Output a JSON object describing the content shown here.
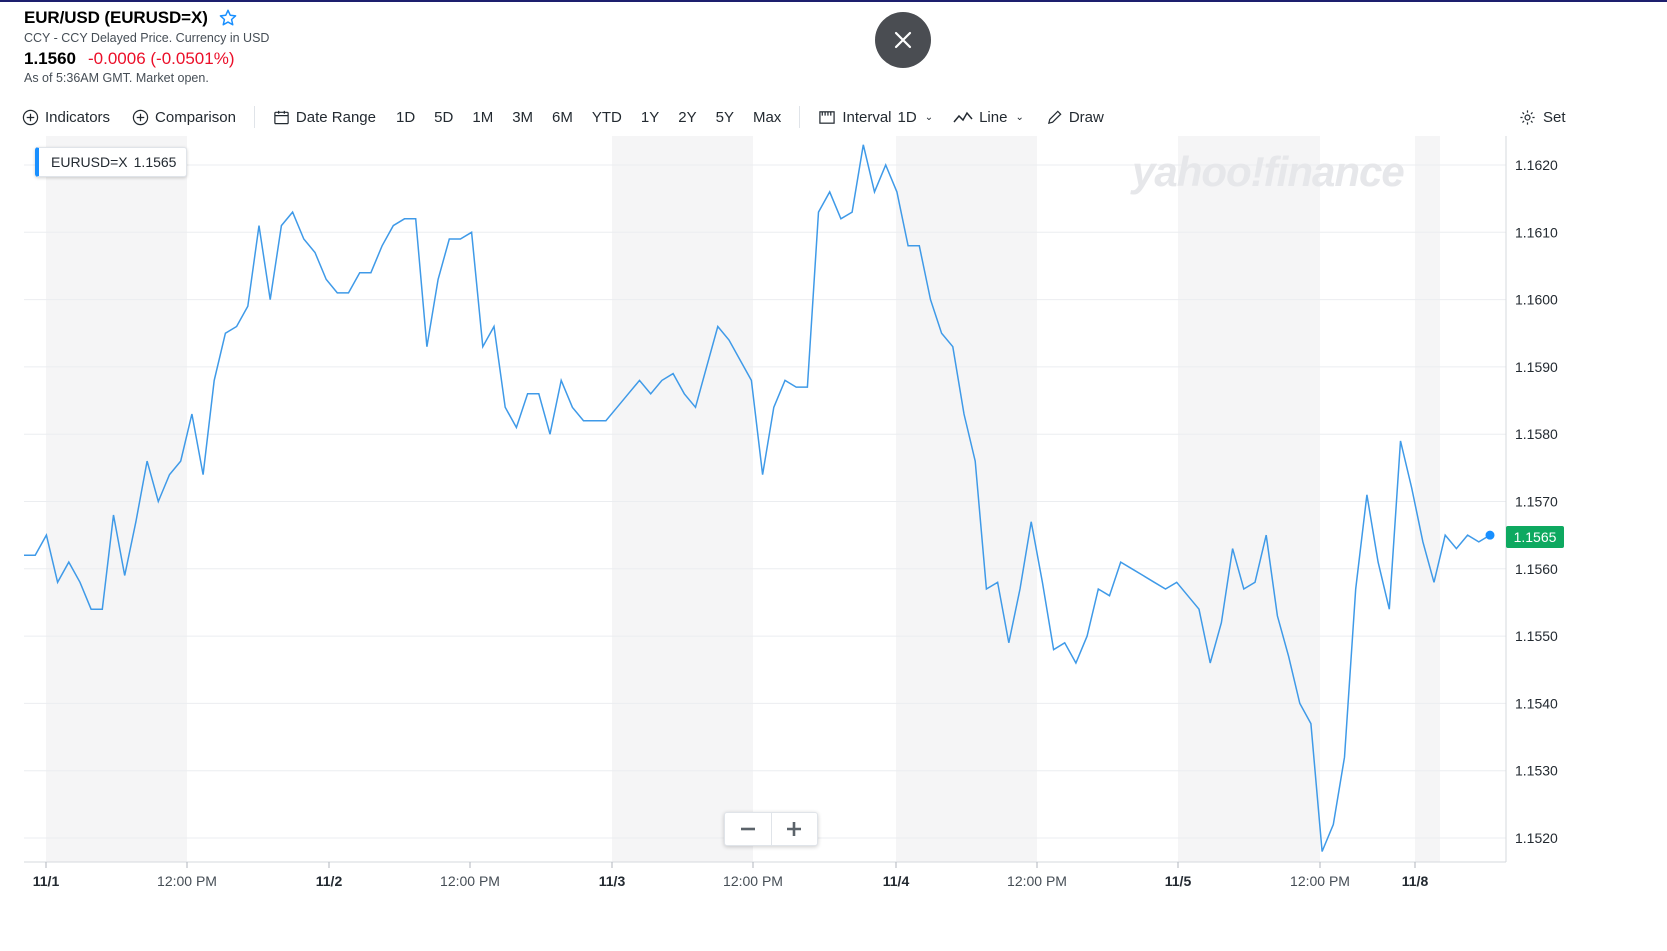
{
  "header": {
    "title": "EUR/USD (EURUSD=X)",
    "subtitle": "CCY - CCY Delayed Price. Currency in USD",
    "price": "1.1560",
    "change": "-0.0006 (-0.0501%)",
    "as_of": "As of 5:36AM GMT. Market open."
  },
  "toolbar": {
    "indicators_label": "Indicators",
    "comparison_label": "Comparison",
    "date_range_label": "Date Range",
    "ranges": [
      "1D",
      "5D",
      "1M",
      "3M",
      "6M",
      "YTD",
      "1Y",
      "2Y",
      "5Y",
      "Max"
    ],
    "interval_label": "Interval",
    "interval_value": "1D",
    "line_label": "Line",
    "draw_label": "Draw",
    "settings_label": "Set"
  },
  "legend": {
    "symbol": "EURUSD=X",
    "value": "1.1565"
  },
  "watermark": "yahoo!finance",
  "current_price_tag": "1.1565",
  "colors": {
    "line": "#3f9ae8",
    "accent": "#188fff",
    "negative": "#eb0f29",
    "tag": "#0ea960"
  },
  "chart_data": {
    "type": "line",
    "ylim": [
      1.1517,
      1.1624
    ],
    "y_ticks": [
      "1.1620",
      "1.1610",
      "1.1600",
      "1.1590",
      "1.1580",
      "1.1570",
      "1.1560",
      "1.1550",
      "1.1540",
      "1.1530",
      "1.1520"
    ],
    "x_ticks": [
      "11/1",
      "12:00 PM",
      "11/2",
      "12:00 PM",
      "11/3",
      "12:00 PM",
      "11/4",
      "12:00 PM",
      "11/5",
      "12:00 PM",
      "11/8"
    ],
    "series": [
      {
        "values": [
          1.1562,
          1.1562,
          1.1565,
          1.1558,
          1.1561,
          1.1558,
          1.1554,
          1.1554,
          1.1568,
          1.1559,
          1.1567,
          1.1576,
          1.157,
          1.1574,
          1.1576,
          1.1583,
          1.1574,
          1.1588,
          1.1595,
          1.1596,
          1.1599,
          1.1611,
          1.16,
          1.1611,
          1.1613,
          1.1609,
          1.1607,
          1.1603,
          1.1601,
          1.1601,
          1.1604,
          1.1604,
          1.1608,
          1.1611,
          1.1612,
          1.1612,
          1.1593,
          1.1603,
          1.1609,
          1.1609,
          1.161,
          1.1593,
          1.1596,
          1.1584,
          1.1581,
          1.1586,
          1.1586,
          1.158,
          1.1588,
          1.1584,
          1.1582,
          1.1582,
          1.1582,
          1.1584,
          1.1586,
          1.1588,
          1.1586,
          1.1588,
          1.1589,
          1.1586,
          1.1584,
          1.159,
          1.1596,
          1.1594,
          1.1591,
          1.1588,
          1.1574,
          1.1584,
          1.1588,
          1.1587,
          1.1587,
          1.1613,
          1.1616,
          1.1612,
          1.1613,
          1.1623,
          1.1616,
          1.162,
          1.1616,
          1.1608,
          1.1608,
          1.16,
          1.1595,
          1.1593,
          1.1583,
          1.1576,
          1.1557,
          1.1558,
          1.1549,
          1.1557,
          1.1567,
          1.1558,
          1.1548,
          1.1549,
          1.1546,
          1.155,
          1.1557,
          1.1556,
          1.1561,
          1.156,
          1.1559,
          1.1558,
          1.1557,
          1.1558,
          1.1556,
          1.1554,
          1.1546,
          1.1552,
          1.1563,
          1.1557,
          1.1558,
          1.1565,
          1.1553,
          1.1547,
          1.154,
          1.1537,
          1.1518,
          1.1522,
          1.1532,
          1.1557,
          1.1571,
          1.1561,
          1.1554,
          1.1579,
          1.1572,
          1.1564,
          1.1558,
          1.1565,
          1.1563,
          1.1565,
          1.1564,
          1.1565
        ]
      }
    ]
  }
}
